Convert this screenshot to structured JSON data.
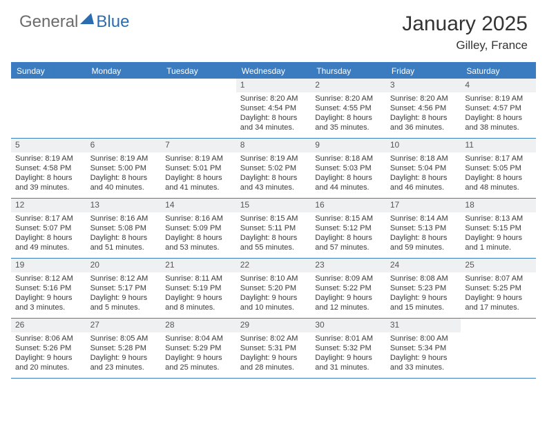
{
  "brand": {
    "part1": "General",
    "part2": "Blue",
    "color_gray": "#6b6b6b",
    "color_blue": "#2b6cb0",
    "triangle_color": "#2b6cb0"
  },
  "title": "January 2025",
  "location": "Gilley, France",
  "header_bar_color": "#3b7bbf",
  "daynum_bg": "#eef0f1",
  "text_color": "#3a3a3a",
  "font_family": "Arial, Helvetica, sans-serif",
  "dow": [
    "Sunday",
    "Monday",
    "Tuesday",
    "Wednesday",
    "Thursday",
    "Friday",
    "Saturday"
  ],
  "weeks": [
    [
      {
        "day": "",
        "sunrise": "",
        "sunset": "",
        "daylight1": "",
        "daylight2": ""
      },
      {
        "day": "",
        "sunrise": "",
        "sunset": "",
        "daylight1": "",
        "daylight2": ""
      },
      {
        "day": "",
        "sunrise": "",
        "sunset": "",
        "daylight1": "",
        "daylight2": ""
      },
      {
        "day": "1",
        "sunrise": "Sunrise: 8:20 AM",
        "sunset": "Sunset: 4:54 PM",
        "daylight1": "Daylight: 8 hours",
        "daylight2": "and 34 minutes."
      },
      {
        "day": "2",
        "sunrise": "Sunrise: 8:20 AM",
        "sunset": "Sunset: 4:55 PM",
        "daylight1": "Daylight: 8 hours",
        "daylight2": "and 35 minutes."
      },
      {
        "day": "3",
        "sunrise": "Sunrise: 8:20 AM",
        "sunset": "Sunset: 4:56 PM",
        "daylight1": "Daylight: 8 hours",
        "daylight2": "and 36 minutes."
      },
      {
        "day": "4",
        "sunrise": "Sunrise: 8:19 AM",
        "sunset": "Sunset: 4:57 PM",
        "daylight1": "Daylight: 8 hours",
        "daylight2": "and 38 minutes."
      }
    ],
    [
      {
        "day": "5",
        "sunrise": "Sunrise: 8:19 AM",
        "sunset": "Sunset: 4:58 PM",
        "daylight1": "Daylight: 8 hours",
        "daylight2": "and 39 minutes."
      },
      {
        "day": "6",
        "sunrise": "Sunrise: 8:19 AM",
        "sunset": "Sunset: 5:00 PM",
        "daylight1": "Daylight: 8 hours",
        "daylight2": "and 40 minutes."
      },
      {
        "day": "7",
        "sunrise": "Sunrise: 8:19 AM",
        "sunset": "Sunset: 5:01 PM",
        "daylight1": "Daylight: 8 hours",
        "daylight2": "and 41 minutes."
      },
      {
        "day": "8",
        "sunrise": "Sunrise: 8:19 AM",
        "sunset": "Sunset: 5:02 PM",
        "daylight1": "Daylight: 8 hours",
        "daylight2": "and 43 minutes."
      },
      {
        "day": "9",
        "sunrise": "Sunrise: 8:18 AM",
        "sunset": "Sunset: 5:03 PM",
        "daylight1": "Daylight: 8 hours",
        "daylight2": "and 44 minutes."
      },
      {
        "day": "10",
        "sunrise": "Sunrise: 8:18 AM",
        "sunset": "Sunset: 5:04 PM",
        "daylight1": "Daylight: 8 hours",
        "daylight2": "and 46 minutes."
      },
      {
        "day": "11",
        "sunrise": "Sunrise: 8:17 AM",
        "sunset": "Sunset: 5:05 PM",
        "daylight1": "Daylight: 8 hours",
        "daylight2": "and 48 minutes."
      }
    ],
    [
      {
        "day": "12",
        "sunrise": "Sunrise: 8:17 AM",
        "sunset": "Sunset: 5:07 PM",
        "daylight1": "Daylight: 8 hours",
        "daylight2": "and 49 minutes."
      },
      {
        "day": "13",
        "sunrise": "Sunrise: 8:16 AM",
        "sunset": "Sunset: 5:08 PM",
        "daylight1": "Daylight: 8 hours",
        "daylight2": "and 51 minutes."
      },
      {
        "day": "14",
        "sunrise": "Sunrise: 8:16 AM",
        "sunset": "Sunset: 5:09 PM",
        "daylight1": "Daylight: 8 hours",
        "daylight2": "and 53 minutes."
      },
      {
        "day": "15",
        "sunrise": "Sunrise: 8:15 AM",
        "sunset": "Sunset: 5:11 PM",
        "daylight1": "Daylight: 8 hours",
        "daylight2": "and 55 minutes."
      },
      {
        "day": "16",
        "sunrise": "Sunrise: 8:15 AM",
        "sunset": "Sunset: 5:12 PM",
        "daylight1": "Daylight: 8 hours",
        "daylight2": "and 57 minutes."
      },
      {
        "day": "17",
        "sunrise": "Sunrise: 8:14 AM",
        "sunset": "Sunset: 5:13 PM",
        "daylight1": "Daylight: 8 hours",
        "daylight2": "and 59 minutes."
      },
      {
        "day": "18",
        "sunrise": "Sunrise: 8:13 AM",
        "sunset": "Sunset: 5:15 PM",
        "daylight1": "Daylight: 9 hours",
        "daylight2": "and 1 minute."
      }
    ],
    [
      {
        "day": "19",
        "sunrise": "Sunrise: 8:12 AM",
        "sunset": "Sunset: 5:16 PM",
        "daylight1": "Daylight: 9 hours",
        "daylight2": "and 3 minutes."
      },
      {
        "day": "20",
        "sunrise": "Sunrise: 8:12 AM",
        "sunset": "Sunset: 5:17 PM",
        "daylight1": "Daylight: 9 hours",
        "daylight2": "and 5 minutes."
      },
      {
        "day": "21",
        "sunrise": "Sunrise: 8:11 AM",
        "sunset": "Sunset: 5:19 PM",
        "daylight1": "Daylight: 9 hours",
        "daylight2": "and 8 minutes."
      },
      {
        "day": "22",
        "sunrise": "Sunrise: 8:10 AM",
        "sunset": "Sunset: 5:20 PM",
        "daylight1": "Daylight: 9 hours",
        "daylight2": "and 10 minutes."
      },
      {
        "day": "23",
        "sunrise": "Sunrise: 8:09 AM",
        "sunset": "Sunset: 5:22 PM",
        "daylight1": "Daylight: 9 hours",
        "daylight2": "and 12 minutes."
      },
      {
        "day": "24",
        "sunrise": "Sunrise: 8:08 AM",
        "sunset": "Sunset: 5:23 PM",
        "daylight1": "Daylight: 9 hours",
        "daylight2": "and 15 minutes."
      },
      {
        "day": "25",
        "sunrise": "Sunrise: 8:07 AM",
        "sunset": "Sunset: 5:25 PM",
        "daylight1": "Daylight: 9 hours",
        "daylight2": "and 17 minutes."
      }
    ],
    [
      {
        "day": "26",
        "sunrise": "Sunrise: 8:06 AM",
        "sunset": "Sunset: 5:26 PM",
        "daylight1": "Daylight: 9 hours",
        "daylight2": "and 20 minutes."
      },
      {
        "day": "27",
        "sunrise": "Sunrise: 8:05 AM",
        "sunset": "Sunset: 5:28 PM",
        "daylight1": "Daylight: 9 hours",
        "daylight2": "and 23 minutes."
      },
      {
        "day": "28",
        "sunrise": "Sunrise: 8:04 AM",
        "sunset": "Sunset: 5:29 PM",
        "daylight1": "Daylight: 9 hours",
        "daylight2": "and 25 minutes."
      },
      {
        "day": "29",
        "sunrise": "Sunrise: 8:02 AM",
        "sunset": "Sunset: 5:31 PM",
        "daylight1": "Daylight: 9 hours",
        "daylight2": "and 28 minutes."
      },
      {
        "day": "30",
        "sunrise": "Sunrise: 8:01 AM",
        "sunset": "Sunset: 5:32 PM",
        "daylight1": "Daylight: 9 hours",
        "daylight2": "and 31 minutes."
      },
      {
        "day": "31",
        "sunrise": "Sunrise: 8:00 AM",
        "sunset": "Sunset: 5:34 PM",
        "daylight1": "Daylight: 9 hours",
        "daylight2": "and 33 minutes."
      },
      {
        "day": "",
        "sunrise": "",
        "sunset": "",
        "daylight1": "",
        "daylight2": ""
      }
    ]
  ]
}
